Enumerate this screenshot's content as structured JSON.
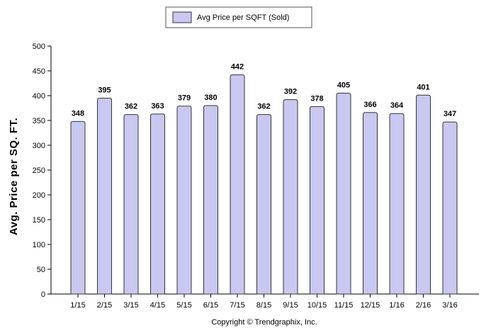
{
  "chart_data": {
    "type": "bar",
    "categories": [
      "1/15",
      "2/15",
      "3/15",
      "4/15",
      "5/15",
      "6/15",
      "7/15",
      "8/15",
      "9/15",
      "10/15",
      "11/15",
      "12/15",
      "1/16",
      "2/16",
      "3/16"
    ],
    "series": [
      {
        "name": "Avg Price per SQFT (Sold)",
        "values": [
          348,
          395,
          362,
          363,
          379,
          380,
          442,
          362,
          392,
          378,
          405,
          366,
          364,
          401,
          347
        ]
      }
    ],
    "title": "",
    "xlabel": "",
    "ylabel": "Avg. Price per SQ. FT.",
    "ylim": [
      0,
      500
    ],
    "yticks": [
      0,
      50,
      100,
      150,
      200,
      250,
      300,
      350,
      400,
      450,
      500
    ],
    "grid": false,
    "legend_position": "top-center",
    "colors": {
      "bar_fill": "#c8c8f0",
      "bar_stroke": "#333333",
      "axis": "#000000"
    }
  },
  "footer": {
    "copyright": "Copyright © Trendgraphix, Inc."
  }
}
